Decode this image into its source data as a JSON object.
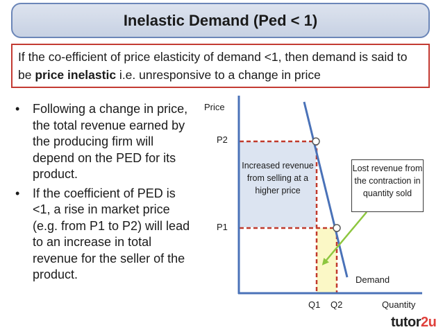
{
  "title": "Inelastic Demand (Ped < 1)",
  "definition": {
    "text_before": "If the co-efficient of price elasticity of demand <1, then demand is said to be ",
    "bold_text": "price inelastic",
    "text_after": " i.e. unresponsive to a change in price"
  },
  "bullets": [
    {
      "marker": "•",
      "text": "Following a change in price, the total revenue earned by the producing firm will depend on the PED for its product."
    },
    {
      "marker": "•",
      "text": "If the coefficient of PED is <1, a rise in market price (e.g. from P1 to P2) will lead to an increase in total revenue for the seller of the product."
    }
  ],
  "chart": {
    "y_axis_label": "Price",
    "x_axis_label": "Quantity",
    "price_labels": {
      "p2": "P2",
      "p1": "P1"
    },
    "quantity_labels": {
      "q1": "Q1",
      "q2": "Q2"
    },
    "curve_label": "Demand",
    "gain_annotation": "Increased revenue from selling at a higher price",
    "loss_annotation": "Lost revenue from the contraction in quantity sold"
  },
  "colors": {
    "title_border": "#6b86b8",
    "definition_border": "#c33a32",
    "demand_curve": "#4a72b8",
    "dashed_lines": "#c0392b",
    "gain_area": "#dce4f1",
    "loss_area": "#fbf8c6",
    "arrow": "#8dc63f",
    "logo_accent": "#e0403b"
  },
  "logo": {
    "text": "tutor",
    "accent": "2u"
  }
}
